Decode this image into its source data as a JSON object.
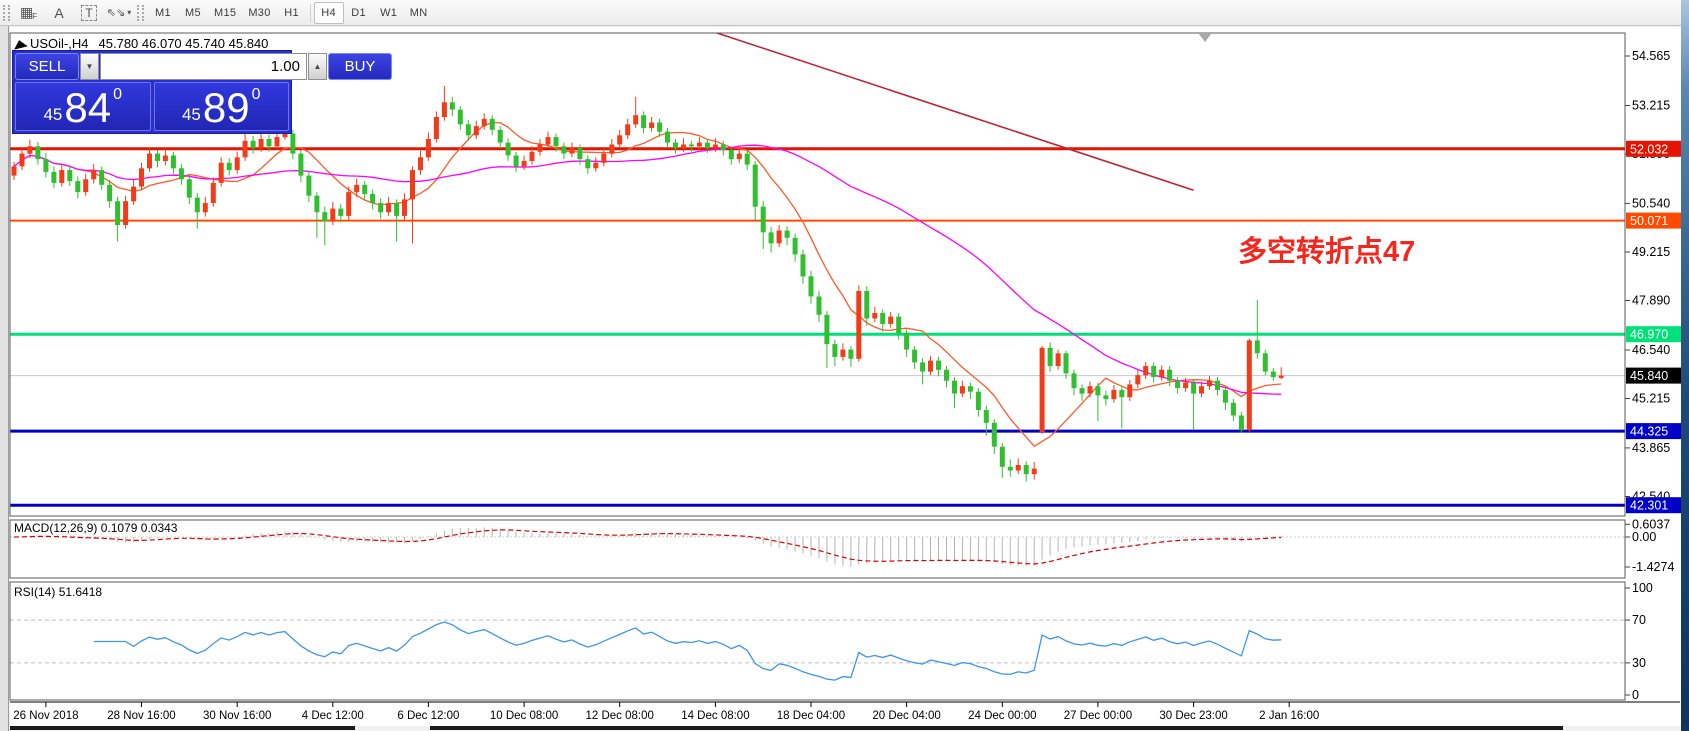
{
  "toolbar": {
    "icons": [
      {
        "name": "indicator-grid",
        "glyph": "▦",
        "sub": "F"
      },
      {
        "name": "font",
        "glyph": "A"
      },
      {
        "name": "text-label",
        "glyph": "T"
      },
      {
        "name": "arrange-objects",
        "glyph": "⇖⇘",
        "caret": "▾"
      }
    ],
    "timeframes": [
      "M1",
      "M5",
      "M15",
      "M30",
      "H1",
      "H4",
      "D1",
      "W1",
      "MN"
    ],
    "active_timeframe": "H4"
  },
  "chart": {
    "symbol_period": "USOil-,H4",
    "ohlc_text": "45.780 46.070 45.740 45.840"
  },
  "trade_panel": {
    "sell_label": "SELL",
    "buy_label": "BUY",
    "volume": "1.00",
    "sell_price": {
      "prefix": "45",
      "big": "84",
      "sup": "0"
    },
    "buy_price": {
      "prefix": "45",
      "big": "89",
      "sup": "0"
    }
  },
  "annotation": {
    "text": "多空转折点47",
    "color": "#f5261d"
  },
  "macd_panel": {
    "label": "MACD(12,26,9)",
    "values_text": "0.1079 0.0343",
    "axis_labels": [
      "0.6037",
      "0.00",
      "-1.4274"
    ]
  },
  "rsi_panel": {
    "label": "RSI(14)",
    "value_text": "51.6418",
    "axis_labels": [
      "100",
      "70",
      "30",
      "0"
    ],
    "levels": [
      70,
      30
    ]
  },
  "price_axis": {
    "scale_labels": [
      "54.565",
      "53.215",
      "51.890",
      "50.540",
      "49.215",
      "47.890",
      "46.540",
      "45.215",
      "43.865",
      "42.540"
    ],
    "badges": [
      {
        "label": "52.032",
        "price": 52.032,
        "bg": "#e51400"
      },
      {
        "label": "50.071",
        "price": 50.071,
        "bg": "#ff4a00"
      },
      {
        "label": "46.970",
        "price": 46.97,
        "bg": "#00e07a"
      },
      {
        "label": "45.840",
        "price": 45.84,
        "bg": "#000000"
      },
      {
        "label": "44.325",
        "price": 44.325,
        "bg": "#0000c8"
      },
      {
        "label": "42.301",
        "price": 42.301,
        "bg": "#0000c8"
      }
    ]
  },
  "chart_data": {
    "type": "candlestick",
    "symbol": "USOil-",
    "timeframe": "H4",
    "current_bar": {
      "open": 45.78,
      "high": 46.07,
      "low": 45.74,
      "close": 45.84
    },
    "y_axis": {
      "price_top": 55.19,
      "price_bottom": 42.01
    },
    "hlines": [
      {
        "price": 52.032,
        "color": "#e51400",
        "width": 3
      },
      {
        "price": 50.071,
        "color": "#ff4a00",
        "width": 2
      },
      {
        "price": 46.97,
        "color": "#00e07a",
        "width": 3
      },
      {
        "price": 45.84,
        "color": "#c8c8c8",
        "width": 1
      },
      {
        "price": 44.325,
        "color": "#0000c8",
        "width": 3
      },
      {
        "price": 42.301,
        "color": "#0000c8",
        "width": 3
      }
    ],
    "trendline": {
      "bar1": 86,
      "price1": 55.35,
      "bar2": 148,
      "price2": 50.9,
      "color": "#c02535"
    },
    "moving_averages": [
      {
        "period": 9,
        "color": "#ff5a26"
      },
      {
        "period": 45,
        "color": "#ff00ff"
      }
    ],
    "indicators": [
      {
        "name": "MACD",
        "params": [
          12,
          26,
          9
        ],
        "value": 0.1079,
        "signal": 0.0343
      },
      {
        "name": "RSI",
        "params": [
          14
        ],
        "value": 51.6418
      }
    ],
    "up_color": "#f23b19",
    "down_color": "#2fbf2f",
    "time_labels": [
      {
        "label": "26 Nov 2018",
        "bar": 4
      },
      {
        "label": "28 Nov 16:00",
        "bar": 16
      },
      {
        "label": "30 Nov 16:00",
        "bar": 28
      },
      {
        "label": "4 Dec 12:00",
        "bar": 40
      },
      {
        "label": "6 Dec 12:00",
        "bar": 52
      },
      {
        "label": "10 Dec 08:00",
        "bar": 64
      },
      {
        "label": "12 Dec 08:00",
        "bar": 76
      },
      {
        "label": "14 Dec 08:00",
        "bar": 88
      },
      {
        "label": "18 Dec 04:00",
        "bar": 100
      },
      {
        "label": "20 Dec 04:00",
        "bar": 112
      },
      {
        "label": "24 Dec 00:00",
        "bar": 124
      },
      {
        "label": "27 Dec 00:00",
        "bar": 136
      },
      {
        "label": "30 Dec 23:00",
        "bar": 148
      },
      {
        "label": "2 Jan 16:00",
        "bar": 160
      }
    ],
    "candles": [
      [
        51.3,
        51.68,
        51.18,
        51.55
      ],
      [
        51.55,
        52.02,
        51.45,
        51.9
      ],
      [
        51.9,
        52.28,
        51.78,
        52.1
      ],
      [
        52.1,
        52.22,
        51.6,
        51.75
      ],
      [
        51.75,
        51.92,
        51.25,
        51.4
      ],
      [
        51.4,
        51.55,
        50.95,
        51.1
      ],
      [
        51.1,
        51.6,
        51.0,
        51.45
      ],
      [
        51.45,
        51.58,
        51.02,
        51.15
      ],
      [
        51.15,
        51.28,
        50.68,
        50.85
      ],
      [
        50.85,
        51.35,
        50.75,
        51.2
      ],
      [
        51.2,
        51.62,
        51.08,
        51.45
      ],
      [
        51.45,
        51.55,
        50.9,
        51.05
      ],
      [
        51.05,
        51.18,
        50.42,
        50.6
      ],
      [
        50.6,
        50.72,
        49.5,
        49.95
      ],
      [
        49.95,
        50.75,
        49.85,
        50.6
      ],
      [
        50.6,
        51.18,
        50.5,
        51.0
      ],
      [
        51.0,
        51.65,
        50.92,
        51.5
      ],
      [
        51.5,
        52.05,
        51.4,
        51.9
      ],
      [
        51.9,
        52.0,
        51.52,
        51.7
      ],
      [
        51.7,
        52.02,
        51.58,
        51.85
      ],
      [
        51.85,
        51.95,
        51.35,
        51.5
      ],
      [
        51.5,
        51.62,
        51.05,
        51.2
      ],
      [
        51.2,
        51.3,
        50.52,
        50.7
      ],
      [
        50.7,
        50.82,
        49.85,
        50.3
      ],
      [
        50.3,
        50.72,
        50.18,
        50.55
      ],
      [
        50.55,
        51.25,
        50.45,
        51.1
      ],
      [
        51.1,
        51.8,
        51.0,
        51.65
      ],
      [
        51.65,
        51.78,
        51.3,
        51.45
      ],
      [
        51.45,
        51.95,
        51.35,
        51.8
      ],
      [
        51.8,
        52.6,
        51.7,
        52.25
      ],
      [
        52.25,
        52.38,
        51.9,
        52.05
      ],
      [
        52.05,
        52.45,
        51.95,
        52.3
      ],
      [
        52.3,
        52.42,
        51.95,
        52.1
      ],
      [
        52.1,
        52.5,
        52.0,
        52.35
      ],
      [
        52.35,
        52.62,
        52.28,
        52.45
      ],
      [
        52.45,
        52.55,
        51.75,
        51.9
      ],
      [
        51.9,
        52.0,
        51.12,
        51.3
      ],
      [
        51.3,
        51.42,
        50.58,
        50.75
      ],
      [
        50.75,
        50.85,
        49.6,
        50.3
      ],
      [
        50.3,
        50.45,
        49.4,
        50.05
      ],
      [
        50.05,
        50.58,
        49.95,
        50.4
      ],
      [
        50.4,
        50.52,
        50.02,
        50.2
      ],
      [
        50.2,
        51.0,
        50.1,
        50.85
      ],
      [
        50.85,
        51.22,
        50.72,
        51.05
      ],
      [
        51.05,
        51.15,
        50.65,
        50.8
      ],
      [
        50.8,
        50.92,
        50.38,
        50.55
      ],
      [
        50.55,
        50.68,
        50.12,
        50.3
      ],
      [
        50.3,
        50.72,
        50.2,
        50.55
      ],
      [
        50.55,
        50.65,
        49.5,
        50.2
      ],
      [
        50.2,
        50.82,
        50.08,
        50.65
      ],
      [
        50.65,
        51.55,
        49.45,
        51.45
      ],
      [
        51.45,
        51.98,
        51.32,
        51.8
      ],
      [
        51.8,
        52.48,
        51.7,
        52.3
      ],
      [
        52.3,
        53.05,
        52.2,
        52.9
      ],
      [
        52.9,
        53.75,
        52.8,
        53.3
      ],
      [
        53.3,
        53.45,
        52.92,
        53.1
      ],
      [
        53.1,
        53.2,
        52.55,
        52.7
      ],
      [
        52.7,
        52.82,
        52.25,
        52.4
      ],
      [
        52.4,
        52.8,
        52.3,
        52.65
      ],
      [
        52.65,
        53.0,
        52.55,
        52.85
      ],
      [
        52.85,
        52.95,
        52.4,
        52.55
      ],
      [
        52.55,
        52.65,
        52.05,
        52.2
      ],
      [
        52.2,
        52.32,
        51.7,
        51.85
      ],
      [
        51.85,
        51.95,
        51.4,
        51.55
      ],
      [
        51.55,
        51.85,
        51.45,
        51.7
      ],
      [
        51.7,
        52.1,
        51.6,
        51.95
      ],
      [
        51.95,
        52.3,
        51.85,
        52.15
      ],
      [
        52.15,
        52.5,
        52.05,
        52.35
      ],
      [
        52.35,
        52.45,
        51.95,
        52.1
      ],
      [
        52.1,
        52.2,
        51.75,
        51.9
      ],
      [
        51.9,
        52.2,
        51.8,
        52.05
      ],
      [
        52.05,
        52.15,
        51.6,
        51.75
      ],
      [
        51.75,
        51.85,
        51.35,
        51.5
      ],
      [
        51.5,
        51.8,
        51.4,
        51.65
      ],
      [
        51.65,
        52.05,
        51.55,
        51.9
      ],
      [
        51.9,
        52.3,
        51.8,
        52.15
      ],
      [
        52.15,
        52.55,
        52.05,
        52.4
      ],
      [
        52.4,
        52.85,
        52.3,
        52.7
      ],
      [
        52.7,
        53.45,
        52.6,
        52.95
      ],
      [
        52.95,
        53.05,
        52.45,
        52.6
      ],
      [
        52.6,
        52.9,
        52.5,
        52.75
      ],
      [
        52.75,
        52.85,
        52.35,
        52.5
      ],
      [
        52.5,
        52.6,
        52.05,
        52.2
      ],
      [
        52.2,
        52.3,
        51.9,
        52.05
      ],
      [
        52.05,
        52.32,
        51.95,
        52.15
      ],
      [
        52.15,
        52.25,
        51.95,
        52.1
      ],
      [
        52.1,
        52.35,
        52.0,
        52.2
      ],
      [
        52.2,
        52.3,
        51.92,
        52.05
      ],
      [
        52.05,
        52.32,
        51.95,
        52.15
      ],
      [
        52.15,
        52.25,
        51.85,
        52.0
      ],
      [
        52.0,
        52.1,
        51.6,
        51.75
      ],
      [
        51.75,
        52.05,
        51.65,
        51.9
      ],
      [
        51.9,
        52.0,
        51.45,
        51.6
      ],
      [
        51.6,
        51.7,
        50.1,
        50.45
      ],
      [
        50.45,
        50.6,
        49.3,
        49.75
      ],
      [
        49.75,
        49.9,
        49.2,
        49.45
      ],
      [
        49.45,
        49.95,
        49.35,
        49.8
      ],
      [
        49.8,
        49.92,
        49.4,
        49.6
      ],
      [
        49.6,
        49.72,
        48.95,
        49.15
      ],
      [
        49.15,
        49.28,
        48.35,
        48.55
      ],
      [
        48.55,
        48.7,
        47.8,
        48.0
      ],
      [
        48.0,
        48.15,
        47.3,
        47.5
      ],
      [
        47.5,
        47.6,
        46.05,
        46.7
      ],
      [
        46.7,
        46.82,
        46.1,
        46.35
      ],
      [
        46.35,
        46.72,
        46.25,
        46.55
      ],
      [
        46.55,
        46.65,
        46.08,
        46.3
      ],
      [
        46.3,
        48.3,
        46.22,
        48.15
      ],
      [
        48.15,
        48.28,
        47.2,
        47.4
      ],
      [
        47.4,
        47.72,
        47.3,
        47.55
      ],
      [
        47.55,
        47.65,
        47.05,
        47.25
      ],
      [
        47.25,
        47.58,
        47.15,
        47.45
      ],
      [
        47.45,
        47.55,
        46.82,
        47.0
      ],
      [
        47.0,
        47.1,
        46.35,
        46.55
      ],
      [
        46.55,
        46.65,
        46.02,
        46.2
      ],
      [
        46.2,
        46.32,
        45.6,
        45.95
      ],
      [
        45.95,
        46.38,
        45.85,
        46.25
      ],
      [
        46.25,
        46.35,
        45.82,
        46.0
      ],
      [
        46.0,
        46.1,
        45.52,
        45.7
      ],
      [
        45.7,
        45.8,
        44.95,
        45.35
      ],
      [
        45.35,
        45.7,
        45.25,
        45.55
      ],
      [
        45.55,
        45.65,
        45.2,
        45.4
      ],
      [
        45.4,
        45.5,
        44.72,
        44.9
      ],
      [
        44.9,
        45.02,
        44.2,
        44.55
      ],
      [
        44.55,
        44.65,
        43.7,
        43.9
      ],
      [
        43.9,
        44.0,
        43.05,
        43.35
      ],
      [
        43.35,
        43.55,
        43.08,
        43.25
      ],
      [
        43.25,
        43.58,
        43.15,
        43.4
      ],
      [
        43.4,
        43.5,
        42.95,
        43.15
      ],
      [
        43.15,
        43.48,
        43.0,
        43.3
      ],
      [
        44.3,
        46.65,
        44.25,
        46.6
      ],
      [
        46.6,
        46.75,
        45.95,
        46.1
      ],
      [
        46.1,
        46.55,
        46.0,
        46.45
      ],
      [
        46.45,
        46.52,
        45.75,
        45.9
      ],
      [
        45.9,
        46.0,
        45.3,
        45.5
      ],
      [
        45.5,
        45.6,
        45.15,
        45.35
      ],
      [
        45.35,
        45.68,
        45.25,
        45.55
      ],
      [
        45.55,
        45.65,
        44.6,
        45.3
      ],
      [
        45.3,
        45.42,
        45.02,
        45.2
      ],
      [
        45.2,
        45.58,
        45.1,
        45.45
      ],
      [
        45.45,
        45.55,
        44.4,
        45.25
      ],
      [
        45.25,
        45.72,
        45.15,
        45.6
      ],
      [
        45.6,
        45.98,
        45.5,
        45.85
      ],
      [
        45.85,
        46.22,
        45.75,
        46.1
      ],
      [
        46.1,
        46.2,
        45.65,
        45.8
      ],
      [
        45.8,
        46.12,
        45.7,
        46.0
      ],
      [
        46.0,
        46.1,
        45.55,
        45.7
      ],
      [
        45.7,
        45.8,
        45.35,
        45.5
      ],
      [
        45.5,
        45.78,
        45.4,
        45.65
      ],
      [
        45.65,
        45.75,
        44.35,
        45.35
      ],
      [
        45.35,
        45.68,
        45.25,
        45.55
      ],
      [
        45.55,
        45.82,
        45.45,
        45.7
      ],
      [
        45.7,
        45.8,
        45.3,
        45.45
      ],
      [
        45.45,
        45.55,
        44.9,
        45.1
      ],
      [
        45.1,
        45.2,
        44.6,
        44.75
      ],
      [
        44.75,
        44.85,
        44.28,
        44.35
      ],
      [
        44.35,
        46.85,
        44.3,
        46.8
      ],
      [
        46.8,
        47.9,
        46.3,
        46.45
      ],
      [
        46.45,
        46.55,
        45.85,
        45.95
      ],
      [
        45.95,
        46.05,
        45.7,
        45.8
      ],
      [
        45.78,
        46.07,
        45.74,
        45.84
      ]
    ]
  }
}
